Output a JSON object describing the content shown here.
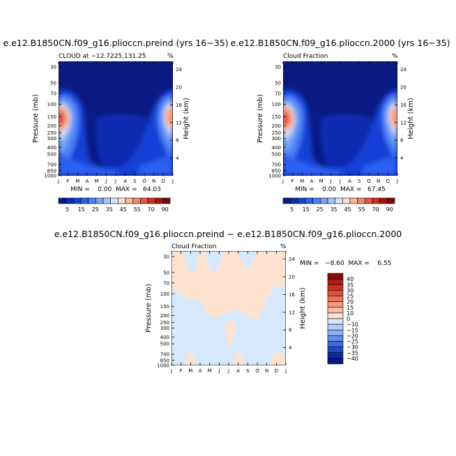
{
  "chart_data": [
    {
      "type": "heatmap",
      "title": "e.e12.B1850CN.f09_g16.plioccn.preind (yrs 16−35)",
      "subtitle": "CLOUD at −12.7225,131.25",
      "unit": "%",
      "ylabel": "Pressure (mb)",
      "ylabel2": "Height (km)",
      "x_ticks": [
        "J",
        "F",
        "M",
        "A",
        "M",
        "J",
        "J",
        "A",
        "S",
        "O",
        "N",
        "D",
        "J"
      ],
      "y_ticks": [
        "30",
        "50",
        "70",
        "100",
        "150",
        "200",
        "250",
        "300",
        "400",
        "500",
        "700",
        "850",
        "1000"
      ],
      "y2_ticks": [
        "24",
        "20",
        "16",
        "12",
        "8",
        "4"
      ],
      "stats": "MIN =    0.00  MAX =   64.03",
      "colorbar_labels": [
        "5",
        "15",
        "25",
        "35",
        "45",
        "55",
        "70",
        "90"
      ],
      "colors": [
        "#0a1a82",
        "#0d2bb0",
        "#1440d6",
        "#2a5ef0",
        "#4a7ff6",
        "#7aa2f8",
        "#a8c4fa",
        "#d4e4fc",
        "#fde2d0",
        "#f8b89a",
        "#f08a68",
        "#e4583f",
        "#cc3020",
        "#a41410",
        "#7a0808"
      ]
    },
    {
      "type": "heatmap",
      "title": "e.e12.B1850CN.f09_g16.plioccn.2000 (yrs 16−35)",
      "subtitle": "Cloud Fraction",
      "unit": "%",
      "ylabel": "Pressure (mb)",
      "ylabel2": "Height (km)",
      "x_ticks": [
        "J",
        "F",
        "M",
        "A",
        "M",
        "J",
        "J",
        "A",
        "S",
        "O",
        "N",
        "D",
        "J"
      ],
      "y_ticks": [
        "30",
        "50",
        "70",
        "100",
        "150",
        "200",
        "250",
        "300",
        "400",
        "500",
        "700",
        "850",
        "1000"
      ],
      "y2_ticks": [
        "24",
        "20",
        "16",
        "12",
        "8",
        "4"
      ],
      "stats": "MIN =    0.00  MAX =   67.45",
      "colorbar_labels": [
        "5",
        "15",
        "25",
        "35",
        "45",
        "55",
        "70",
        "90"
      ]
    },
    {
      "type": "heatmap",
      "title": "e.e12.B1850CN.f09_g16.plioccn.preind − e.e12.B1850CN.f09_g16.plioccn.2000",
      "subtitle": "Cloud Fraction",
      "unit": "%",
      "ylabel": "Pressure (mb)",
      "ylabel2": "Height (km)",
      "x_ticks": [
        "J",
        "F",
        "M",
        "A",
        "M",
        "J",
        "J",
        "A",
        "S",
        "O",
        "N",
        "D",
        "J"
      ],
      "y_ticks": [
        "30",
        "50",
        "70",
        "100",
        "150",
        "200",
        "250",
        "300",
        "400",
        "500",
        "700",
        "850",
        "1000"
      ],
      "y2_ticks": [
        "24",
        "20",
        "16",
        "12",
        "8",
        "4"
      ],
      "stats": "MIN =   −8.60  MAX =    6.55",
      "colorbar_labels": [
        "40",
        "35",
        "30",
        "25",
        "20",
        "15",
        "10",
        "0",
        "−10",
        "−15",
        "−20",
        "−25",
        "−30",
        "−35",
        "−40"
      ],
      "colors": [
        "#8a0a0a",
        "#b01a14",
        "#cc3020",
        "#e0503a",
        "#ec7458",
        "#f49a7c",
        "#f8bca4",
        "#fde2d0",
        "#d6e8fb",
        "#b2cdf6",
        "#8caff0",
        "#628ee8",
        "#3c6cdc",
        "#1e48c4",
        "#0c2a9c",
        "#0a1a82"
      ]
    }
  ]
}
